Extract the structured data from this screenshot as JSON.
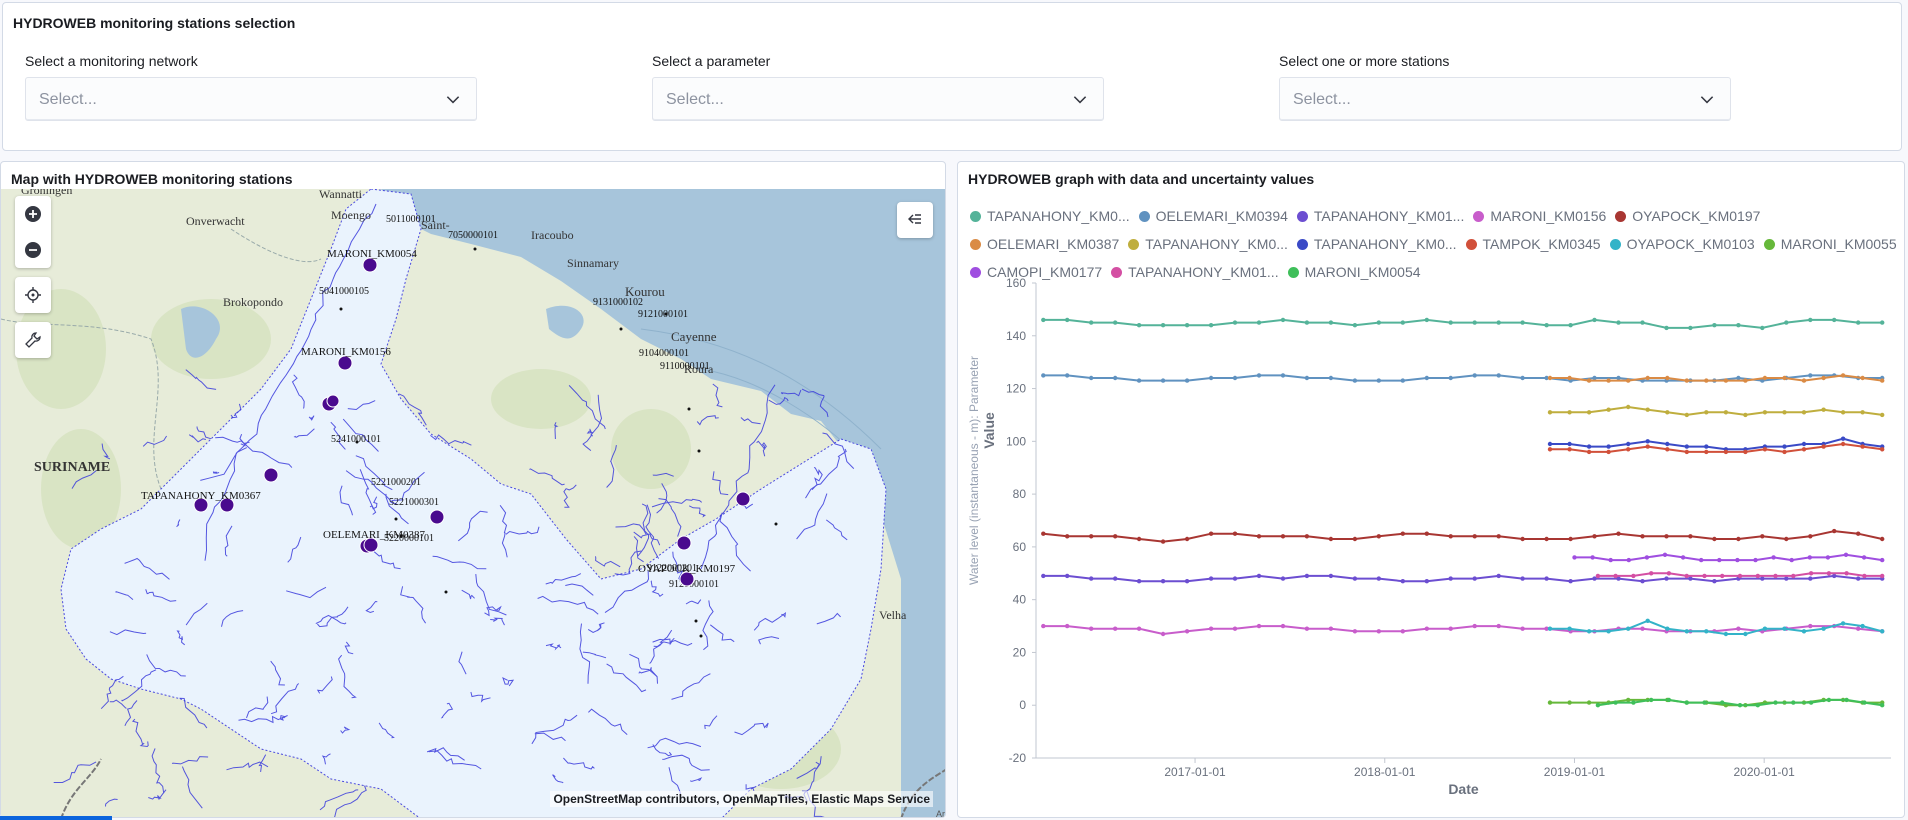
{
  "selection": {
    "title": "HYDROWEB monitoring stations selection",
    "network": {
      "label": "Select a monitoring network",
      "placeholder": "Select..."
    },
    "parameter": {
      "label": "Select a parameter",
      "placeholder": "Select..."
    },
    "stations": {
      "label": "Select one or more stations",
      "placeholder": "Select..."
    }
  },
  "map": {
    "title": "Map with HYDROWEB monitoring stations",
    "attribution": "OpenStreetMap contributors, OpenMapTiles, Elastic Maps Service",
    "corner_label": "Ar",
    "place_labels": [
      "Groningen",
      "Wannatti",
      "Onverwacht",
      "Moengo",
      "Brokopondo",
      "SURINAME",
      "Iracoubo",
      "Sinnamary",
      "Kourou",
      "Cayenne",
      "Roura",
      "Velha",
      "Saint-"
    ],
    "station_labels": [
      "MARONI_KM0054",
      "MARONI_KM0156",
      "TAPANAHONY_KM0367",
      "OELEMARI_KM0387",
      "OYAPOCK_KM0197"
    ],
    "gauge_codes": [
      "5041000105",
      "5241000101",
      "5221000201",
      "5221000301",
      "5220000101",
      "9131000102",
      "9121000101",
      "9104000101",
      "9110000101",
      "9122000201",
      "9120000101",
      "5011000101",
      "7050000101"
    ],
    "icons": [
      "plus-icon",
      "minus-icon",
      "crosshair-icon",
      "wrench-icon",
      "collapse-icon"
    ],
    "colors": {
      "land": "#e7ecd9",
      "sea": "#a7c5db",
      "basin": "#eaf3fd",
      "river": "#3a3bdc",
      "station": "#4a0a8e"
    }
  },
  "graph": {
    "title": "HYDROWEB graph with data and uncertainty values",
    "legend": [
      {
        "name": "TAPANAHONY_KM0...",
        "color": "#54b399"
      },
      {
        "name": "OELEMARI_KM0394",
        "color": "#6092c0"
      },
      {
        "name": "TAPANAHONY_KM01...",
        "color": "#6c4ed1"
      },
      {
        "name": "MARONI_KM0156",
        "color": "#c85dcb"
      },
      {
        "name": "OYAPOCK_KM0197",
        "color": "#a83632"
      },
      {
        "name": "OELEMARI_KM0387",
        "color": "#da8b45"
      },
      {
        "name": "TAPANAHONY_KM0...",
        "color": "#bfae3e"
      },
      {
        "name": "TAPANAHONY_KM0...",
        "color": "#3a4ac6"
      },
      {
        "name": "TAMPOK_KM0345",
        "color": "#d1503a"
      },
      {
        "name": "OYAPOCK_KM0103",
        "color": "#33b3c8"
      },
      {
        "name": "MARONI_KM0055",
        "color": "#66b83a"
      },
      {
        "name": "CAMOPI_KM0177",
        "color": "#9f4ee0"
      },
      {
        "name": "TAPANAHONY_KM01...",
        "color": "#d44fa3"
      },
      {
        "name": "MARONI_KM0054",
        "color": "#3fbf5a"
      }
    ]
  },
  "chart_data": {
    "type": "line",
    "title": "HYDROWEB graph with data and uncertainty values",
    "xlabel": "Date",
    "ylabel": "Value",
    "ylabel_secondary": "Water level (instantaneous - m): Parameter",
    "ylim": [
      -20,
      160
    ],
    "yticks": [
      -20,
      0,
      20,
      40,
      60,
      80,
      100,
      120,
      140,
      160
    ],
    "xlim": [
      "2016-03-01",
      "2020-09-01"
    ],
    "xticks": [
      "2017-01-01",
      "2018-01-01",
      "2019-01-01",
      "2020-01-01"
    ],
    "grid": false,
    "legend": "top",
    "series": [
      {
        "name": "TAPANAHONY_KM0...",
        "color": "#54b399",
        "x_start": "2016-03-15",
        "x_end": "2020-08-15",
        "points": [
          146,
          146,
          145,
          145,
          144,
          144,
          144,
          144,
          145,
          145,
          146,
          145,
          145,
          144,
          145,
          145,
          146,
          145,
          145,
          145,
          145,
          144,
          144,
          146,
          145,
          145,
          143,
          143,
          144,
          144,
          143,
          145,
          146,
          146,
          145,
          145
        ]
      },
      {
        "name": "OELEMARI_KM0394",
        "color": "#6092c0",
        "x_start": "2016-03-15",
        "x_end": "2020-08-15",
        "points": [
          125,
          125,
          124,
          124,
          123,
          123,
          123,
          124,
          124,
          125,
          125,
          124,
          124,
          123,
          123,
          123,
          124,
          124,
          125,
          125,
          124,
          124,
          123,
          124,
          124,
          123,
          123,
          123,
          123,
          124,
          123,
          124,
          125,
          125,
          124,
          124
        ]
      },
      {
        "name": "TAPANAHONY_KM01...",
        "color": "#6c4ed1",
        "x_start": "2016-03-15",
        "x_end": "2020-08-15",
        "points": [
          49,
          49,
          48,
          48,
          47,
          47,
          47,
          48,
          48,
          49,
          48,
          49,
          49,
          48,
          48,
          47,
          47,
          48,
          48,
          49,
          48,
          48,
          47,
          48,
          48,
          47,
          48,
          48,
          47,
          48,
          48,
          48,
          48,
          49,
          48,
          48
        ]
      },
      {
        "name": "MARONI_KM0156",
        "color": "#c85dcb",
        "x_start": "2016-03-15",
        "x_end": "2020-08-15",
        "points": [
          30,
          30,
          29,
          29,
          29,
          27,
          28,
          29,
          29,
          30,
          30,
          29,
          29,
          28,
          28,
          28,
          29,
          29,
          30,
          30,
          29,
          29,
          28,
          28,
          29,
          29,
          28,
          28,
          28,
          29,
          28,
          29,
          30,
          30,
          29,
          28
        ]
      },
      {
        "name": "OYAPOCK_KM0197",
        "color": "#a83632",
        "x_start": "2016-03-15",
        "x_end": "2020-08-15",
        "points": [
          65,
          64,
          64,
          64,
          63,
          62,
          63,
          65,
          65,
          64,
          64,
          64,
          63,
          63,
          64,
          65,
          65,
          64,
          64,
          64,
          63,
          63,
          63,
          64,
          65,
          64,
          64,
          64,
          63,
          63,
          64,
          63,
          64,
          66,
          65,
          63
        ]
      },
      {
        "name": "OELEMARI_KM0387",
        "color": "#da8b45",
        "x_start": "2018-11-15",
        "x_end": "2020-08-15",
        "points": [
          124,
          124,
          123,
          123,
          123,
          124,
          124,
          123,
          123,
          123,
          123,
          124,
          124,
          123,
          124,
          125,
          124,
          123
        ]
      },
      {
        "name": "TAPANAHONY_KM0...",
        "color": "#bfae3e",
        "x_start": "2018-11-15",
        "x_end": "2020-08-15",
        "points": [
          111,
          111,
          111,
          112,
          113,
          112,
          111,
          110,
          111,
          111,
          110,
          111,
          111,
          111,
          112,
          111,
          111,
          110
        ]
      },
      {
        "name": "TAPANAHONY_KM0...",
        "color": "#3a4ac6",
        "x_start": "2018-11-15",
        "x_end": "2020-08-15",
        "points": [
          99,
          99,
          98,
          98,
          99,
          100,
          99,
          98,
          98,
          97,
          97,
          98,
          98,
          99,
          99,
          101,
          99,
          98
        ]
      },
      {
        "name": "TAMPOK_KM0345",
        "color": "#d1503a",
        "x_start": "2018-11-15",
        "x_end": "2020-08-15",
        "points": [
          97,
          97,
          96,
          96,
          97,
          98,
          97,
          96,
          96,
          96,
          96,
          97,
          96,
          97,
          98,
          99,
          98,
          97
        ]
      },
      {
        "name": "OYAPOCK_KM0103",
        "color": "#33b3c8",
        "x_start": "2018-11-15",
        "x_end": "2020-08-15",
        "points": [
          29,
          29,
          28,
          28,
          29,
          32,
          29,
          28,
          28,
          27,
          27,
          29,
          29,
          28,
          29,
          31,
          30,
          28
        ]
      },
      {
        "name": "MARONI_KM0055",
        "color": "#66b83a",
        "x_start": "2018-11-15",
        "x_end": "2020-08-15",
        "points": [
          1,
          1,
          1,
          1,
          2,
          2,
          2,
          1,
          1,
          0,
          0,
          1,
          1,
          1,
          2,
          2,
          1,
          1
        ]
      },
      {
        "name": "CAMOPI_KM0177",
        "color": "#9f4ee0",
        "x_start": "2019-01-01",
        "x_end": "2020-08-15",
        "points": [
          56,
          56,
          55,
          55,
          56,
          57,
          56,
          55,
          55,
          55,
          55,
          56,
          55,
          56,
          56,
          57,
          56,
          55
        ]
      },
      {
        "name": "TAPANAHONY_KM01...",
        "color": "#d44fa3",
        "x_start": "2019-02-15",
        "x_end": "2020-08-15",
        "points": [
          49,
          49,
          49,
          50,
          50,
          49,
          49,
          49,
          49,
          49,
          49,
          49,
          50,
          50,
          50,
          49,
          49
        ]
      },
      {
        "name": "MARONI_KM0054",
        "color": "#3fbf5a",
        "x_start": "2019-02-15",
        "x_end": "2020-08-15",
        "points": [
          0,
          1,
          1,
          2,
          2,
          1,
          1,
          1,
          0,
          0,
          1,
          1,
          1,
          2,
          2,
          1,
          0
        ]
      }
    ]
  }
}
